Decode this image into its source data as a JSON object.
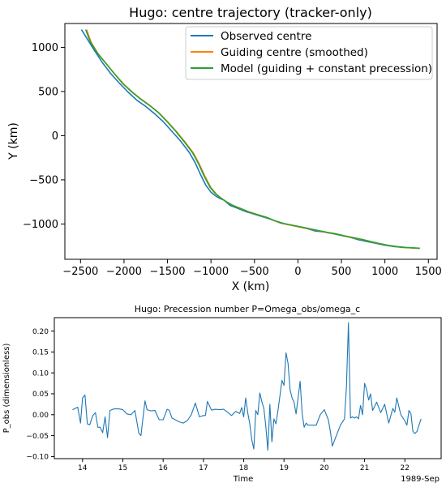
{
  "chart_data": [
    {
      "type": "line",
      "title": "Hugo: centre trajectory (tracker-only)",
      "xlabel": "X (km)",
      "ylabel": "Y (km)",
      "xlim": [
        -2680,
        1600
      ],
      "ylim": [
        -1400,
        1270
      ],
      "xticks": [
        -2500,
        -2000,
        -1500,
        -1000,
        -500,
        0,
        500,
        1000,
        1500
      ],
      "yticks": [
        -1000,
        -500,
        0,
        500,
        1000
      ],
      "xtick_labels": [
        "−2500",
        "−2000",
        "−1500",
        "−1000",
        "−500",
        "0",
        "500",
        "1000",
        "1500"
      ],
      "ytick_labels": [
        "−1000",
        "−500",
        "0",
        "500",
        "1000"
      ],
      "grid": false,
      "legend_position": "top-right",
      "series": [
        {
          "name": "Observed centre",
          "color": "#1f77b4",
          "x": [
            -2490,
            -2420,
            -2350,
            -2250,
            -2150,
            -2050,
            -1950,
            -1850,
            -1750,
            -1650,
            -1550,
            -1450,
            -1350,
            -1250,
            -1180,
            -1120,
            -1060,
            -1000,
            -950,
            -900,
            -850,
            -780,
            -700,
            -600,
            -500,
            -400,
            -300,
            -200,
            -100,
            0,
            100,
            200,
            300,
            400,
            500,
            600,
            700,
            800,
            900,
            1000,
            1100,
            1200,
            1300,
            1400
          ],
          "y": [
            1200,
            1090,
            980,
            830,
            700,
            590,
            490,
            400,
            330,
            250,
            160,
            50,
            -60,
            -190,
            -310,
            -440,
            -560,
            -640,
            -680,
            -710,
            -730,
            -790,
            -820,
            -860,
            -890,
            -920,
            -950,
            -990,
            -1010,
            -1030,
            -1050,
            -1080,
            -1090,
            -1110,
            -1130,
            -1150,
            -1180,
            -1200,
            -1220,
            -1240,
            -1255,
            -1265,
            -1270,
            -1275
          ]
        },
        {
          "name": "Guiding centre (smoothed)",
          "color": "#ff7f0e",
          "x": [
            -2430,
            -2380,
            -2300,
            -2200,
            -2100,
            -2000,
            -1900,
            -1800,
            -1700,
            -1600,
            -1500,
            -1400,
            -1300,
            -1200,
            -1130,
            -1070,
            -1000,
            -940,
            -880,
            -820,
            -750,
            -650,
            -550,
            -450,
            -350,
            -250,
            -150,
            -50,
            50,
            150,
            250,
            350,
            450,
            550,
            650,
            750,
            850,
            950,
            1050,
            1150,
            1250,
            1350,
            1400
          ],
          "y": [
            1200,
            1060,
            930,
            810,
            690,
            580,
            490,
            410,
            340,
            260,
            160,
            50,
            -70,
            -200,
            -330,
            -460,
            -590,
            -660,
            -710,
            -750,
            -790,
            -830,
            -870,
            -900,
            -930,
            -970,
            -1000,
            -1020,
            -1040,
            -1060,
            -1080,
            -1100,
            -1115,
            -1140,
            -1160,
            -1180,
            -1205,
            -1225,
            -1245,
            -1258,
            -1268,
            -1274,
            -1276
          ]
        },
        {
          "name": "Model (guiding + constant precession)",
          "color": "#2ca02c",
          "x": [
            -2440,
            -2390,
            -2310,
            -2210,
            -2110,
            -2010,
            -1910,
            -1810,
            -1710,
            -1610,
            -1510,
            -1410,
            -1310,
            -1210,
            -1140,
            -1080,
            -1010,
            -950,
            -890,
            -830,
            -760,
            -660,
            -560,
            -460,
            -360,
            -260,
            -160,
            -60,
            40,
            140,
            240,
            340,
            440,
            540,
            640,
            740,
            840,
            940,
            1040,
            1140,
            1240,
            1340,
            1400
          ],
          "y": [
            1200,
            1070,
            940,
            820,
            700,
            585,
            495,
            415,
            345,
            265,
            165,
            55,
            -65,
            -195,
            -325,
            -455,
            -585,
            -655,
            -705,
            -745,
            -785,
            -825,
            -865,
            -895,
            -925,
            -965,
            -995,
            -1015,
            -1035,
            -1055,
            -1075,
            -1095,
            -1112,
            -1135,
            -1155,
            -1175,
            -1200,
            -1222,
            -1242,
            -1256,
            -1266,
            -1272,
            -1274
          ]
        }
      ]
    },
    {
      "type": "line",
      "title": "Hugo: Precession number P=Omega_obs/omega_c",
      "xlabel": "Time",
      "ylabel": "P_obs (dimensionless)",
      "x_units": "day of month, 1989-Sep",
      "xlim": [
        13.3,
        22.9
      ],
      "ylim": [
        -0.105,
        0.232
      ],
      "xticks": [
        14,
        15,
        16,
        17,
        18,
        19,
        20,
        21,
        22
      ],
      "xtick_labels": [
        "14",
        "15",
        "16",
        "17",
        "18",
        "19",
        "20",
        "21",
        "22"
      ],
      "yticks": [
        -0.1,
        -0.05,
        0.0,
        0.05,
        0.1,
        0.15,
        0.2
      ],
      "ytick_labels": [
        "−0.10",
        "−0.05",
        "0.00",
        "0.05",
        "0.10",
        "0.15",
        "0.20"
      ],
      "x_offset_label": "1989-Sep",
      "grid": false,
      "series": [
        {
          "name": "",
          "color": "#1f77b4",
          "x": [
            13.75,
            13.88,
            13.95,
            14.0,
            14.06,
            14.12,
            14.18,
            14.25,
            14.32,
            14.38,
            14.44,
            14.5,
            14.56,
            14.62,
            14.68,
            14.75,
            14.8,
            14.9,
            15.0,
            15.1,
            15.2,
            15.3,
            15.4,
            15.45,
            15.5,
            15.55,
            15.6,
            15.7,
            15.8,
            15.9,
            16.0,
            16.1,
            16.15,
            16.22,
            16.3,
            16.4,
            16.5,
            16.6,
            16.7,
            16.8,
            16.9,
            17.0,
            17.05,
            17.1,
            17.2,
            17.3,
            17.4,
            17.5,
            17.6,
            17.7,
            17.8,
            17.9,
            17.95,
            18.0,
            18.05,
            18.1,
            18.15,
            18.2,
            18.25,
            18.3,
            18.35,
            18.4,
            18.45,
            18.5,
            18.55,
            18.6,
            18.65,
            18.7,
            18.75,
            18.8,
            18.85,
            18.9,
            18.95,
            19.0,
            19.05,
            19.1,
            19.15,
            19.2,
            19.25,
            19.3,
            19.35,
            19.4,
            19.45,
            19.5,
            19.55,
            19.6,
            19.7,
            19.8,
            19.9,
            20.0,
            20.1,
            20.15,
            20.2,
            20.3,
            20.4,
            20.5,
            20.55,
            20.6,
            20.65,
            20.7,
            20.75,
            20.8,
            20.85,
            20.9,
            20.95,
            21.0,
            21.05,
            21.1,
            21.15,
            21.2,
            21.3,
            21.4,
            21.5,
            21.6,
            21.7,
            21.75,
            21.8,
            21.9,
            22.0,
            22.05,
            22.1,
            22.15,
            22.2,
            22.25,
            22.3,
            22.4
          ],
          "y": [
            0.012,
            0.018,
            -0.02,
            0.04,
            0.047,
            -0.022,
            -0.024,
            -0.003,
            0.005,
            -0.03,
            -0.03,
            -0.043,
            -0.005,
            -0.055,
            0.01,
            0.013,
            0.014,
            0.014,
            0.012,
            0.002,
            0.0,
            0.01,
            -0.045,
            -0.05,
            -0.008,
            0.033,
            0.012,
            0.009,
            0.01,
            -0.012,
            -0.012,
            0.013,
            0.011,
            -0.008,
            -0.012,
            -0.017,
            -0.02,
            -0.014,
            0.0,
            0.028,
            -0.005,
            -0.002,
            -0.002,
            0.032,
            0.011,
            0.013,
            0.012,
            0.013,
            0.006,
            -0.002,
            0.008,
            0.003,
            0.017,
            -0.005,
            0.04,
            0.005,
            -0.022,
            -0.06,
            -0.082,
            0.01,
            0.0,
            0.052,
            0.031,
            0.015,
            -0.03,
            -0.085,
            0.025,
            -0.065,
            -0.01,
            -0.022,
            0.01,
            0.045,
            0.082,
            0.07,
            0.148,
            0.123,
            0.06,
            0.04,
            0.03,
            0.002,
            0.04,
            0.08,
            0.003,
            -0.03,
            -0.02,
            -0.025,
            -0.025,
            -0.025,
            0.0,
            0.012,
            -0.012,
            -0.04,
            -0.075,
            -0.05,
            -0.025,
            -0.01,
            0.065,
            0.22,
            -0.008,
            -0.005,
            -0.008,
            -0.005,
            -0.01,
            0.022,
            0.0,
            0.075,
            0.06,
            0.035,
            0.05,
            0.01,
            0.03,
            0.005,
            0.025,
            -0.02,
            0.015,
            0.006,
            0.04,
            0.0,
            -0.015,
            -0.025,
            0.01,
            0.003,
            -0.04,
            -0.045,
            -0.04,
            -0.01
          ]
        }
      ]
    }
  ]
}
